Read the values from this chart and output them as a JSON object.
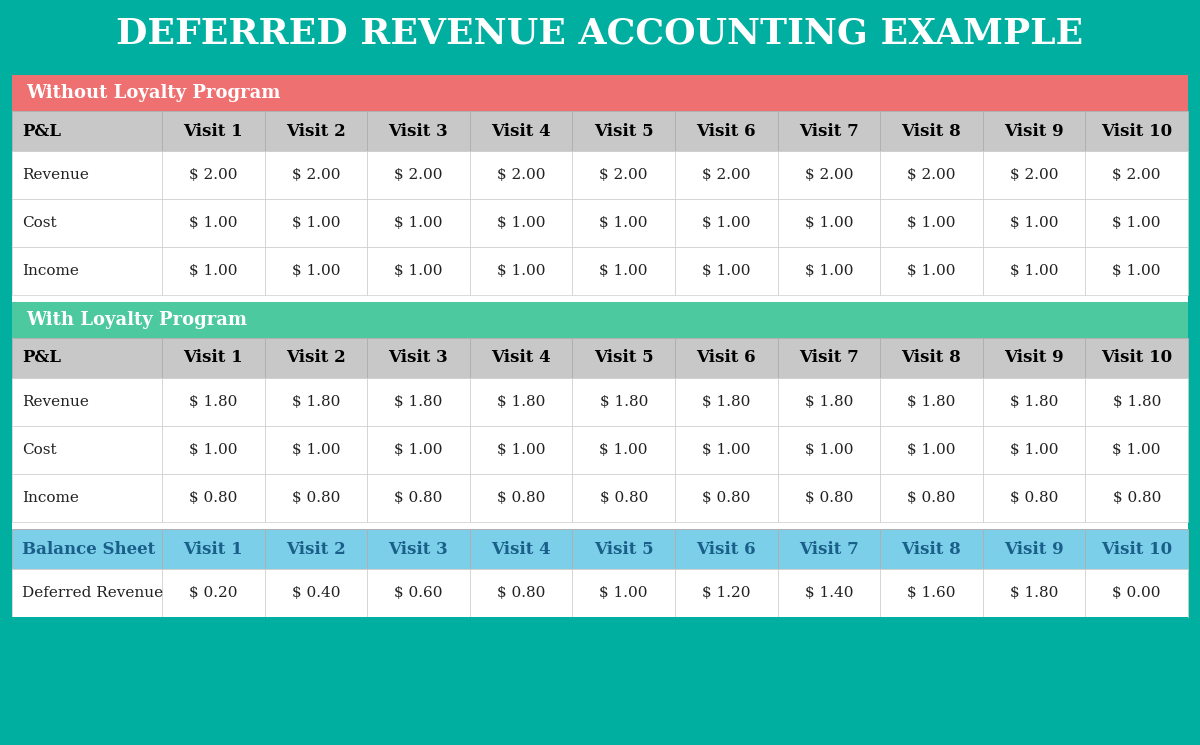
{
  "title": "DEFERRED REVENUE ACCOUNTING EXAMPLE",
  "title_bg": "#00AFA0",
  "title_color": "#FFFFFF",
  "title_fontsize": 26,
  "section1_label": "Without Loyalty Program",
  "section1_bg": "#EF7070",
  "section1_color": "#FFFFFF",
  "section2_label": "With Loyalty Program",
  "section2_bg": "#4DC9A0",
  "section2_color": "#FFFFFF",
  "section3_label": "Balance Sheet",
  "section3_bg": "#7BCFE8",
  "section3_color": "#1A5F8A",
  "header_bg": "#C8C8C8",
  "header_color": "#000000",
  "visits": [
    "Visit 1",
    "Visit 2",
    "Visit 3",
    "Visit 4",
    "Visit 5",
    "Visit 6",
    "Visit 7",
    "Visit 8",
    "Visit 9",
    "Visit 10"
  ],
  "without_loyalty_Revenue": [
    "$ 2.00",
    "$ 2.00",
    "$ 2.00",
    "$ 2.00",
    "$ 2.00",
    "$ 2.00",
    "$ 2.00",
    "$ 2.00",
    "$ 2.00",
    "$ 2.00"
  ],
  "without_loyalty_Cost": [
    "$ 1.00",
    "$ 1.00",
    "$ 1.00",
    "$ 1.00",
    "$ 1.00",
    "$ 1.00",
    "$ 1.00",
    "$ 1.00",
    "$ 1.00",
    "$ 1.00"
  ],
  "without_loyalty_Income": [
    "$ 1.00",
    "$ 1.00",
    "$ 1.00",
    "$ 1.00",
    "$ 1.00",
    "$ 1.00",
    "$ 1.00",
    "$ 1.00",
    "$ 1.00",
    "$ 1.00"
  ],
  "with_loyalty_Revenue": [
    "$ 1.80",
    "$ 1.80",
    "$ 1.80",
    "$ 1.80",
    "$ 1.80",
    "$ 1.80",
    "$ 1.80",
    "$ 1.80",
    "$ 1.80",
    "$ 1.80"
  ],
  "with_loyalty_Cost": [
    "$ 1.00",
    "$ 1.00",
    "$ 1.00",
    "$ 1.00",
    "$ 1.00",
    "$ 1.00",
    "$ 1.00",
    "$ 1.00",
    "$ 1.00",
    "$ 1.00"
  ],
  "with_loyalty_Income": [
    "$ 0.80",
    "$ 0.80",
    "$ 0.80",
    "$ 0.80",
    "$ 0.80",
    "$ 0.80",
    "$ 0.80",
    "$ 0.80",
    "$ 0.80",
    "$ 0.80"
  ],
  "deferred_revenue": [
    "$ 0.20",
    "$ 0.40",
    "$ 0.60",
    "$ 0.80",
    "$ 1.00",
    "$ 1.20",
    "$ 1.40",
    "$ 1.60",
    "$ 1.80",
    "$ 0.00"
  ],
  "outer_color": "#00AFA0",
  "white_gap": "#FFFFFF",
  "font_family": "serif"
}
